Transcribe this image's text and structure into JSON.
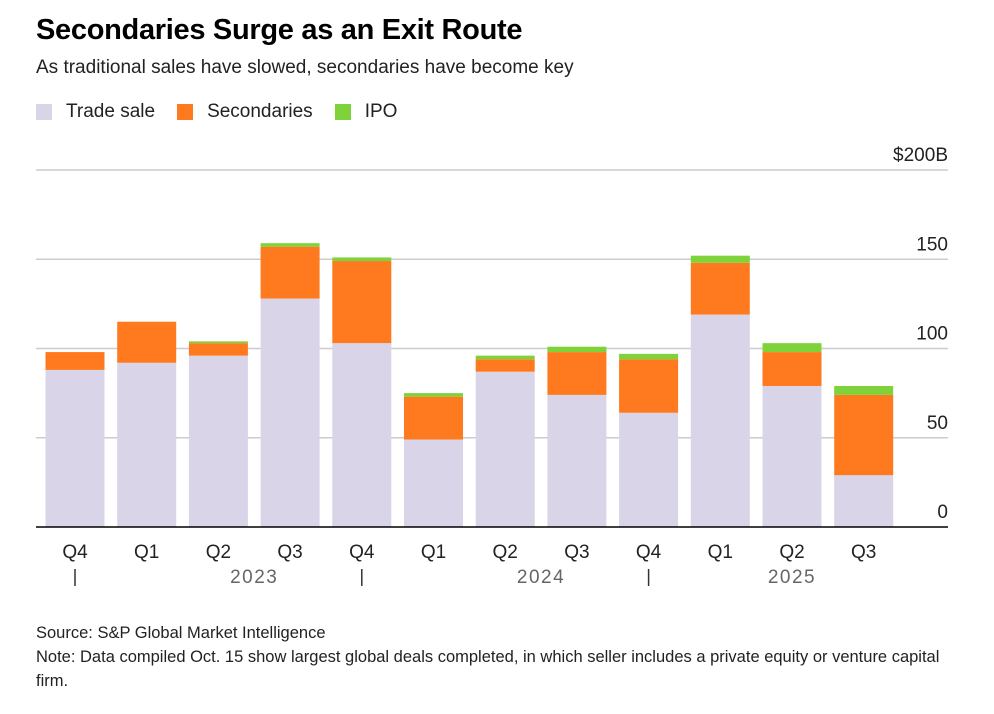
{
  "header": {
    "title": "Secondaries Surge as an Exit Route",
    "subtitle": "As traditional sales have slowed, secondaries have become key"
  },
  "colors": {
    "trade_sale": "#d9d4e8",
    "secondaries": "#ff7a1f",
    "ipo": "#7fd23a",
    "grid": "#cccccc",
    "axis": "#000000"
  },
  "chart_data": {
    "type": "bar",
    "stacked": true,
    "categories": [
      "Q4",
      "Q1",
      "Q2",
      "Q3",
      "Q4",
      "Q1",
      "Q2",
      "Q3",
      "Q4",
      "Q1",
      "Q2",
      "Q3"
    ],
    "year_labels": [
      {
        "label": "2023",
        "start": 1,
        "end": 4
      },
      {
        "label": "2024",
        "start": 5,
        "end": 8
      },
      {
        "label": "2025",
        "start": 9,
        "end": 11
      }
    ],
    "year_separators_after": [
      0,
      4,
      8
    ],
    "series": [
      {
        "name": "Trade sale",
        "color_key": "trade_sale",
        "values": [
          88,
          92,
          96,
          128,
          103,
          49,
          87,
          74,
          64,
          119,
          79,
          29
        ]
      },
      {
        "name": "Secondaries",
        "color_key": "secondaries",
        "values": [
          10,
          23,
          7,
          29,
          46,
          24,
          7,
          24,
          30,
          29,
          19,
          45
        ]
      },
      {
        "name": "IPO",
        "color_key": "ipo",
        "values": [
          0,
          0,
          1,
          2,
          2,
          2,
          2,
          3,
          3,
          4,
          5,
          5
        ]
      }
    ],
    "ylim": [
      0,
      200
    ],
    "yticks": [
      0,
      50,
      100,
      150,
      200
    ],
    "ytick_labels": [
      "0",
      "50",
      "100",
      "150",
      "$200B"
    ],
    "grid": true,
    "legend_position": "top-left"
  },
  "footer": {
    "source": "Source: S&P Global Market Intelligence",
    "note": "Note: Data compiled Oct. 15 show largest global deals completed, in which seller includes a private equity or venture capital firm."
  }
}
